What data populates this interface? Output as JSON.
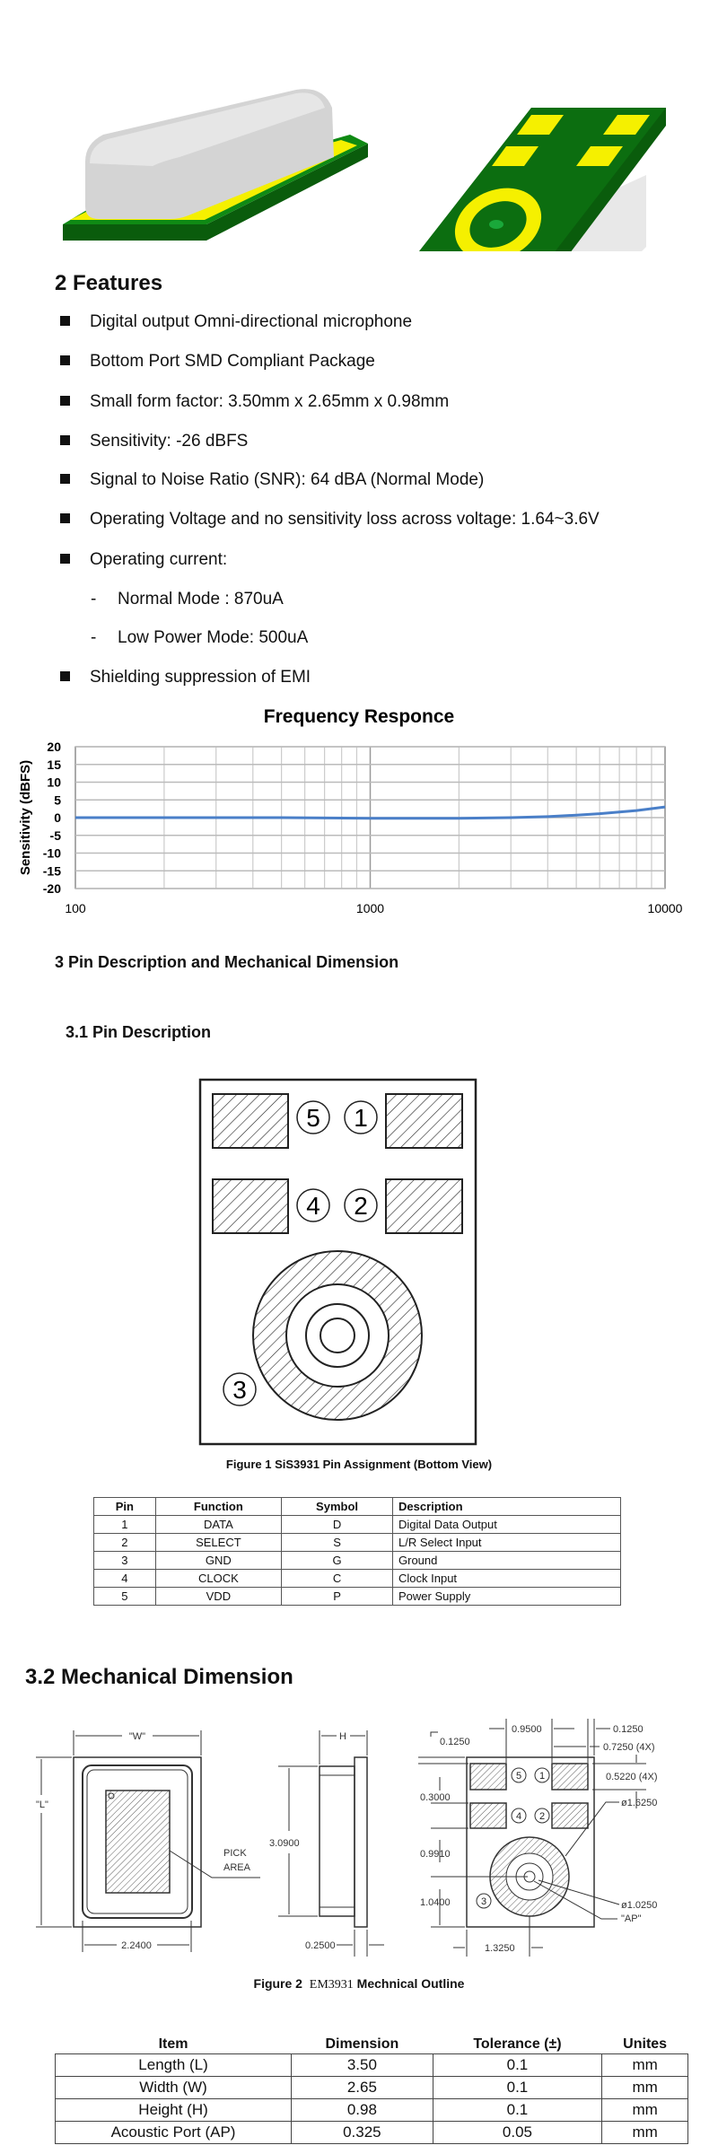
{
  "features": {
    "heading": "2   Features",
    "bullets": [
      "Digital output Omni-directional microphone",
      "Bottom Port SMD Compliant Package",
      "Small form factor: 3.50mm x 2.65mm x 0.98mm",
      "Sensitivity: -26 dBFS",
      "Signal to Noise Ratio (SNR): 64 dBA (Normal Mode)",
      "Operating Voltage and no sensitivity loss across voltage: 1.64~3.6V",
      "Operating current:"
    ],
    "sub_items": [
      "Normal Mode : 870uA",
      "Low Power Mode: 500uA"
    ],
    "last_bullet": "Shielding suppression of EMI"
  },
  "colors": {
    "pcb_green": "#0f7a12",
    "pad_yellow": "#f5f000",
    "series_blue": "#4a7fc8"
  },
  "chart_data": {
    "type": "line",
    "title": "Frequency Responce",
    "xlabel": "",
    "ylabel": "Sensitivity (dBFS)",
    "x_scale": "log",
    "xlim": [
      100,
      10000
    ],
    "ylim": [
      -20,
      20
    ],
    "x_ticks": [
      "100",
      "1000",
      "10000"
    ],
    "y_ticks": [
      "20",
      "15",
      "10",
      "5",
      "0",
      "-5",
      "-10",
      "-15",
      "-20"
    ],
    "grid": true,
    "series": [
      {
        "x": [
          100,
          200,
          500,
          1000,
          2000,
          3000,
          4000,
          5000,
          6000,
          8000,
          10000
        ],
        "y": [
          0,
          0,
          0,
          -0.2,
          -0.2,
          0,
          0.3,
          0.7,
          1.1,
          2.0,
          3.0
        ]
      }
    ]
  },
  "section3": {
    "heading": "3   Pin Description and Mechanical Dimension"
  },
  "section31": {
    "heading": "3.1  Pin Description",
    "pin_labels": [
      "5",
      "1",
      "4",
      "2",
      "3"
    ],
    "figure_caption": "Figure 1 SiS3931 Pin Assignment (Bottom View)",
    "table": {
      "headers": [
        "Pin",
        "Function",
        "Symbol",
        "Description"
      ],
      "rows": [
        [
          "1",
          "DATA",
          "D",
          "Digital Data Output"
        ],
        [
          "2",
          "SELECT",
          "S",
          "L/R Select Input"
        ],
        [
          "3",
          "GND",
          "G",
          "Ground"
        ],
        [
          "4",
          "CLOCK",
          "C",
          "Clock Input"
        ],
        [
          "5",
          "VDD",
          "P",
          "Power Supply"
        ]
      ]
    }
  },
  "section32": {
    "heading": "3.2  Mechanical Dimension",
    "drawing": {
      "w_label": "\"W\"",
      "l_label": "\"L\"",
      "h_label": "H",
      "pick_area": [
        "PICK",
        "AREA"
      ],
      "dim_2240": "2.2400",
      "dim_3090": "3.0900",
      "dim_0250": "0.2500",
      "dim_0950": "0.9500",
      "dim_0125_right": "0.1250",
      "dim_0725": "0.7250 (4X)",
      "dim_0125_left": "0.1250",
      "dim_0522": "0.5220 (4X)",
      "dim_0300": "0.3000",
      "dim_0991": "0.9910",
      "dim_1040": "1.0400",
      "dim_1625": "ø1.6250",
      "dim_1025": "ø1.0250",
      "ap": "\"AP\"",
      "dim_1325": "1.3250",
      "pin_labels": [
        "5",
        "1",
        "4",
        "2",
        "3"
      ]
    },
    "figure_caption_a": "Figure 2",
    "figure_caption_b": "EM3931",
    "figure_caption_c": "Mechnical Outline",
    "table": {
      "headers": [
        "Item",
        "Dimension",
        "Tolerance (±)",
        "Unites"
      ],
      "rows": [
        [
          "Length (L)",
          "3.50",
          "0.1",
          "mm"
        ],
        [
          "Width (W)",
          "2.65",
          "0.1",
          "mm"
        ],
        [
          "Height (H)",
          "0.98",
          "0.1",
          "mm"
        ],
        [
          "Acoustic Port (AP)",
          "0.325",
          "0.05",
          "mm"
        ]
      ]
    }
  }
}
